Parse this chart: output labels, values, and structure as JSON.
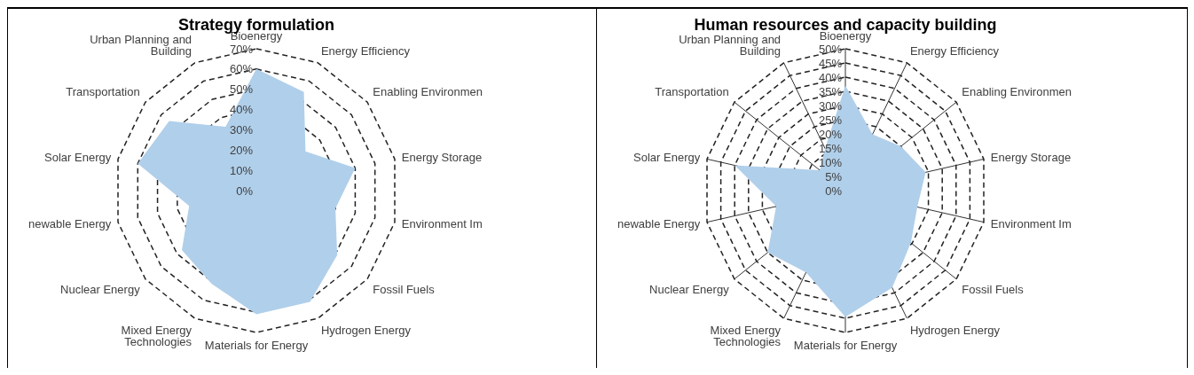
{
  "chart_data": [
    {
      "type": "radar",
      "title": "Strategy formulation",
      "categories": [
        "Bioenergy",
        "Energy Efficiency",
        "Enabling Environmen",
        "Energy Storage",
        "Environment Im",
        "Fossil Fuels",
        "Hydrogen Energy",
        "Materials for Energy",
        "Mixed Energy Technologies",
        "Nuclear Energy",
        "newable Energy",
        "Solar Energy",
        "Transportation",
        "Urban Planning and Building"
      ],
      "series": [
        {
          "color": "#b0cfea",
          "values": [
            60,
            54,
            31,
            50,
            40,
            51,
            61,
            61,
            51,
            47,
            34,
            60,
            55,
            35
          ]
        }
      ],
      "ylim": [
        0,
        70
      ],
      "yticks": [
        {
          "value": 0,
          "label": "0%"
        },
        {
          "value": 10,
          "label": "10%"
        },
        {
          "value": 20,
          "label": "20%"
        },
        {
          "value": 30,
          "label": "30%"
        },
        {
          "value": 40,
          "label": "40%"
        },
        {
          "value": 50,
          "label": "50%"
        },
        {
          "value": 60,
          "label": "60%"
        },
        {
          "value": 70,
          "label": "70%"
        }
      ],
      "grid": "y"
    },
    {
      "type": "radar",
      "title": "Human resources and capacity building",
      "categories": [
        "Bioenergy",
        "Energy Efficiency",
        "Enabling Environmen",
        "Energy Storage",
        "Environment Im",
        "Fossil Fuels",
        "Hydrogen Energy",
        "Materials for Energy",
        "Mixed Energy Technologies",
        "Nuclear Energy",
        "newable Energy",
        "Solar Energy",
        "Transportation",
        "Urban Planning and Building"
      ],
      "series": [
        {
          "color": "#b0cfea",
          "values": [
            37,
            22,
            25,
            29,
            26,
            29.5,
            38,
            44.5,
            32,
            35,
            25,
            40,
            11.5,
            16.5
          ]
        }
      ],
      "ylim": [
        0,
        50
      ],
      "yticks": [
        {
          "value": 0,
          "label": "0%"
        },
        {
          "value": 5,
          "label": "5%"
        },
        {
          "value": 10,
          "label": "10%"
        },
        {
          "value": 15,
          "label": "15%"
        },
        {
          "value": 20,
          "label": "20%"
        },
        {
          "value": 25,
          "label": "25%"
        },
        {
          "value": 30,
          "label": "30%"
        },
        {
          "value": 35,
          "label": "35%"
        },
        {
          "value": 40,
          "label": "40%"
        },
        {
          "value": 45,
          "label": "45%"
        },
        {
          "value": 50,
          "label": "50%"
        }
      ],
      "grid": true
    }
  ]
}
